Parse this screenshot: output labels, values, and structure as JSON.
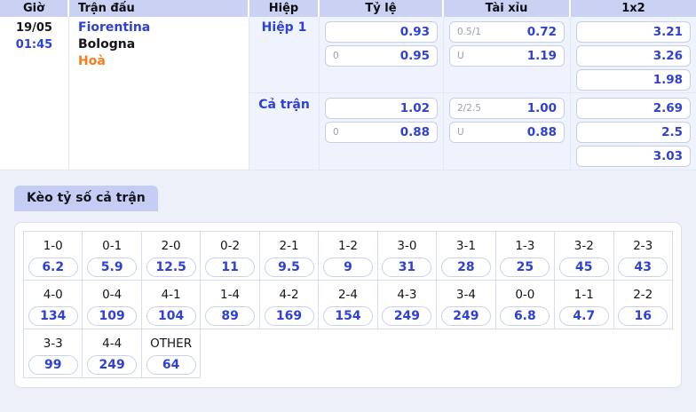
{
  "colors": {
    "header_bg": "#cad1f3",
    "accent_blue": "#2f41d4",
    "accent_orange": "#f97c1c",
    "shaded_col_bg": "#eff3fe",
    "page_bg": "#edf0f8",
    "tab_bg": "#c6cdf4"
  },
  "odds_table": {
    "headers": [
      "Giờ",
      "Trận đấu",
      "Hiệp",
      "Tỷ lệ",
      "Tài xỉu",
      "1x2"
    ],
    "match": {
      "date": "19/05",
      "time": "01:45",
      "home_team": "Fiorentina",
      "away_team": "Bologna",
      "draw_label": "Hoà"
    },
    "sections": [
      {
        "label": "Hiệp 1",
        "ty_le": [
          {
            "hdp": "",
            "odds": "0.93"
          },
          {
            "hdp": "0",
            "odds": "0.95"
          }
        ],
        "tai_xiu": [
          {
            "hdp": "0.5/1",
            "odds": "0.72"
          },
          {
            "hdp": "U",
            "odds": "1.19"
          }
        ],
        "one_x_two": [
          "3.21",
          "3.26",
          "1.98"
        ]
      },
      {
        "label": "Cả trận",
        "ty_le": [
          {
            "hdp": "",
            "odds": "1.02"
          },
          {
            "hdp": "0",
            "odds": "0.88"
          }
        ],
        "tai_xiu": [
          {
            "hdp": "2/2.5",
            "odds": "1.00"
          },
          {
            "hdp": "U",
            "odds": "0.88"
          }
        ],
        "one_x_two": [
          "2.69",
          "2.5",
          "3.03"
        ]
      }
    ]
  },
  "score_grid": {
    "tab_label": "Kèo tỷ số cả trận",
    "columns": 11,
    "rows": [
      [
        {
          "score": "1-0",
          "odds": "6.2"
        },
        {
          "score": "0-1",
          "odds": "5.9"
        },
        {
          "score": "2-0",
          "odds": "12.5"
        },
        {
          "score": "0-2",
          "odds": "11"
        },
        {
          "score": "2-1",
          "odds": "9.5"
        },
        {
          "score": "1-2",
          "odds": "9"
        },
        {
          "score": "3-0",
          "odds": "31"
        },
        {
          "score": "3-1",
          "odds": "28"
        },
        {
          "score": "1-3",
          "odds": "25"
        },
        {
          "score": "3-2",
          "odds": "45"
        },
        {
          "score": "2-3",
          "odds": "43"
        }
      ],
      [
        {
          "score": "4-0",
          "odds": "134"
        },
        {
          "score": "0-4",
          "odds": "109"
        },
        {
          "score": "4-1",
          "odds": "104"
        },
        {
          "score": "1-4",
          "odds": "89"
        },
        {
          "score": "4-2",
          "odds": "169"
        },
        {
          "score": "2-4",
          "odds": "154"
        },
        {
          "score": "4-3",
          "odds": "249"
        },
        {
          "score": "3-4",
          "odds": "249"
        },
        {
          "score": "0-0",
          "odds": "6.8"
        },
        {
          "score": "1-1",
          "odds": "4.7"
        },
        {
          "score": "2-2",
          "odds": "16"
        }
      ],
      [
        {
          "score": "3-3",
          "odds": "99"
        },
        {
          "score": "4-4",
          "odds": "249"
        },
        {
          "score": "OTHER",
          "odds": "64"
        }
      ]
    ]
  }
}
